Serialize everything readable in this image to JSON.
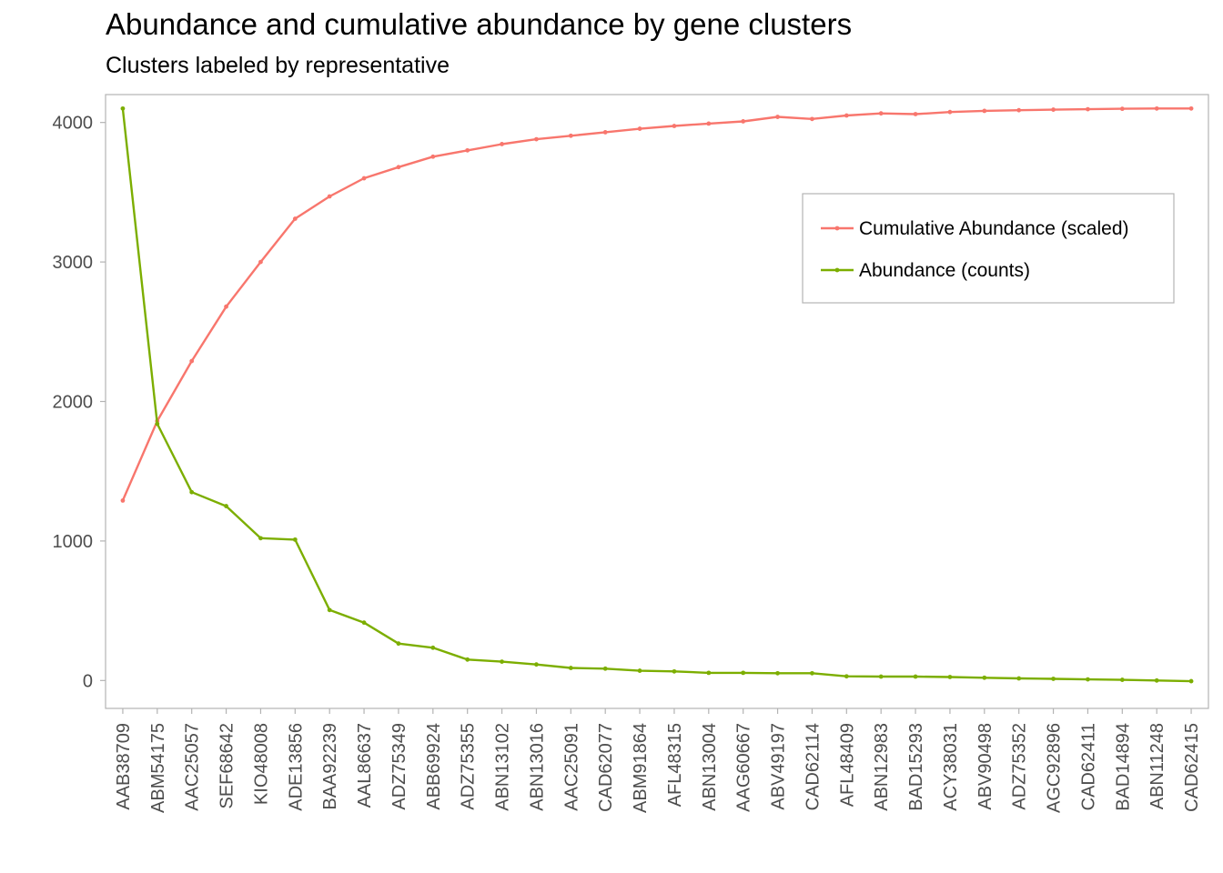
{
  "chart_data": {
    "type": "line",
    "title": "Abundance and cumulative abundance by gene clusters",
    "subtitle": "Clusters labeled by representative",
    "xlabel": "",
    "ylabel": "",
    "ylim": [
      -200,
      4200
    ],
    "yticks": [
      0,
      1000,
      2000,
      3000,
      4000
    ],
    "grid": false,
    "legend_position": "top-right",
    "categories": [
      "AAB38709",
      "ABM54175",
      "AAC25057",
      "SEF68642",
      "KIO48008",
      "ADE13856",
      "BAA92239",
      "AAL86637",
      "ADZ75349",
      "ABB69924",
      "ADZ75355",
      "ABN13102",
      "ABN13016",
      "AAC25091",
      "CAD62077",
      "ABM91864",
      "AFL48315",
      "ABN13004",
      "AAG60667",
      "ABV49197",
      "CAD62114",
      "AFL48409",
      "ABN12983",
      "BAD15293",
      "ACY38031",
      "ABV90498",
      "ADZ75352",
      "AGC92896",
      "CAD62411",
      "BAD14894",
      "ABN11248",
      "CAD62415"
    ],
    "series": [
      {
        "name": "Cumulative Abundance (scaled)",
        "color": "#F8766D",
        "values": [
          1290,
          1860,
          2290,
          2680,
          3000,
          3310,
          3470,
          3600,
          3680,
          3755,
          3800,
          3845,
          3880,
          3905,
          3930,
          3955,
          3975,
          3992,
          4008,
          4040,
          4025,
          4050,
          4065,
          4060,
          4075,
          4083,
          4088,
          4092,
          4095,
          4098,
          4100,
          4100
        ]
      },
      {
        "name": "Abundance (counts)",
        "color": "#7CAE00",
        "values": [
          4100,
          1840,
          1350,
          1250,
          1020,
          1010,
          505,
          415,
          265,
          235,
          150,
          135,
          115,
          90,
          85,
          70,
          65,
          55,
          55,
          52,
          52,
          30,
          28,
          28,
          25,
          20,
          15,
          12,
          8,
          5,
          0,
          -5
        ]
      }
    ]
  }
}
